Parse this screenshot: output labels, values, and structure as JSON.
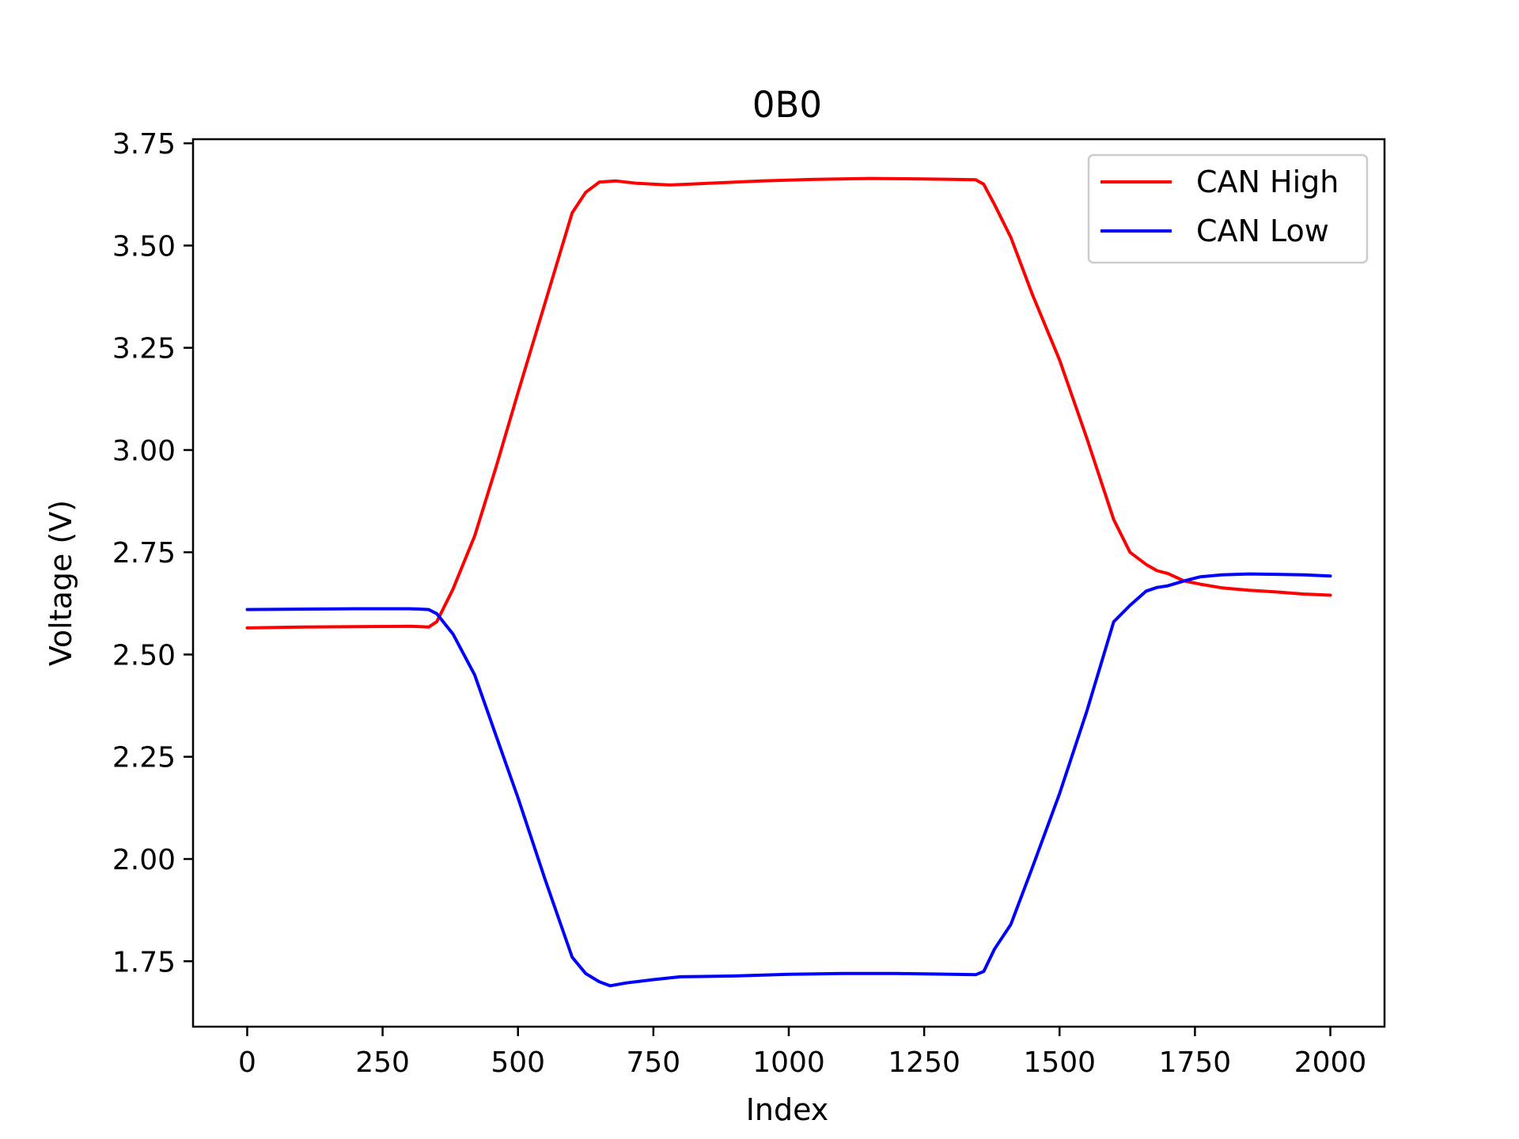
{
  "chart_data": {
    "type": "line",
    "title": "0B0",
    "xlabel": "Index",
    "ylabel": "Voltage (V)",
    "xlim": [
      -100,
      2100
    ],
    "ylim": [
      1.59,
      3.76
    ],
    "xticks": [
      0,
      250,
      500,
      750,
      1000,
      1250,
      1500,
      1750,
      2000
    ],
    "xtick_labels": [
      "0",
      "250",
      "500",
      "750",
      "1000",
      "1250",
      "1500",
      "1750",
      "2000"
    ],
    "yticks": [
      1.75,
      2.0,
      2.25,
      2.5,
      2.75,
      3.0,
      3.25,
      3.5,
      3.75
    ],
    "ytick_labels": [
      "1.75",
      "2.00",
      "2.25",
      "2.50",
      "2.75",
      "3.00",
      "3.25",
      "3.50",
      "3.75"
    ],
    "grid": false,
    "legend_position": "top-right",
    "series": [
      {
        "name": "CAN High",
        "color": "#ff0000",
        "x": [
          0,
          100,
          200,
          300,
          320,
          335,
          350,
          380,
          420,
          460,
          500,
          550,
          600,
          625,
          650,
          680,
          720,
          780,
          850,
          950,
          1050,
          1150,
          1250,
          1300,
          1345,
          1360,
          1380,
          1410,
          1450,
          1500,
          1550,
          1600,
          1630,
          1660,
          1680,
          1700,
          1730,
          1760,
          1800,
          1850,
          1900,
          1950,
          2000
        ],
        "y": [
          2.565,
          2.567,
          2.568,
          2.569,
          2.568,
          2.567,
          2.58,
          2.66,
          2.79,
          2.96,
          3.14,
          3.36,
          3.58,
          3.63,
          3.655,
          3.658,
          3.652,
          3.648,
          3.652,
          3.658,
          3.662,
          3.664,
          3.663,
          3.662,
          3.661,
          3.65,
          3.6,
          3.52,
          3.38,
          3.22,
          3.03,
          2.83,
          2.75,
          2.72,
          2.705,
          2.698,
          2.68,
          2.672,
          2.663,
          2.657,
          2.653,
          2.648,
          2.645
        ]
      },
      {
        "name": "CAN Low",
        "color": "#0000ff",
        "x": [
          0,
          100,
          200,
          300,
          320,
          335,
          350,
          380,
          420,
          460,
          500,
          550,
          600,
          625,
          650,
          670,
          700,
          750,
          800,
          900,
          1000,
          1100,
          1200,
          1300,
          1345,
          1360,
          1380,
          1410,
          1450,
          1500,
          1550,
          1600,
          1630,
          1660,
          1680,
          1700,
          1730,
          1760,
          1800,
          1850,
          1900,
          1950,
          2000
        ],
        "y": [
          2.61,
          2.611,
          2.612,
          2.612,
          2.611,
          2.61,
          2.6,
          2.55,
          2.45,
          2.3,
          2.15,
          1.95,
          1.76,
          1.72,
          1.7,
          1.69,
          1.697,
          1.705,
          1.712,
          1.714,
          1.718,
          1.72,
          1.72,
          1.718,
          1.717,
          1.725,
          1.78,
          1.84,
          1.98,
          2.16,
          2.36,
          2.58,
          2.62,
          2.655,
          2.664,
          2.668,
          2.68,
          2.69,
          2.695,
          2.697,
          2.696,
          2.695,
          2.692
        ]
      }
    ]
  }
}
